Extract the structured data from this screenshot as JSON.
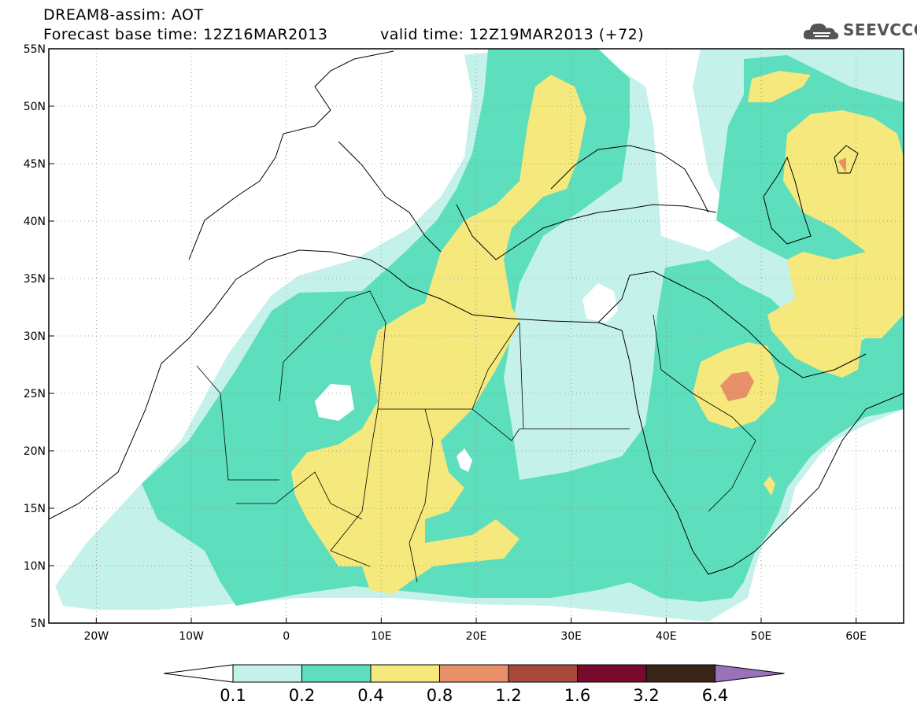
{
  "header": {
    "line1": "DREAM8-assim: AOT",
    "line2": "Forecast base time: 12Z16MAR2013",
    "line3": "valid time: 12Z19MAR2013 (+72)"
  },
  "logo": {
    "text": "SEEVCCC",
    "icon": "cloud-logo-icon",
    "color": "#555555"
  },
  "map": {
    "lat_labels": [
      "55N",
      "50N",
      "45N",
      "40N",
      "35N",
      "30N",
      "25N",
      "20N",
      "15N",
      "10N",
      "5N"
    ],
    "lon_labels": [
      "20W",
      "10W",
      "0",
      "10E",
      "20E",
      "30E",
      "40E",
      "50E",
      "60E"
    ],
    "lat_range": [
      5,
      55
    ],
    "lon_range": [
      -25,
      65
    ],
    "grid": "dotted"
  },
  "colorbar": {
    "labels": [
      "0.1",
      "0.2",
      "0.4",
      "0.8",
      "1.2",
      "1.6",
      "3.2",
      "6.4"
    ],
    "colors": [
      "#ffffff",
      "#c4f2ea",
      "#5ddebd",
      "#f5e87c",
      "#e8906a",
      "#a8493c",
      "#7a0a2c",
      "#3a2418",
      "#9a72b8"
    ]
  }
}
